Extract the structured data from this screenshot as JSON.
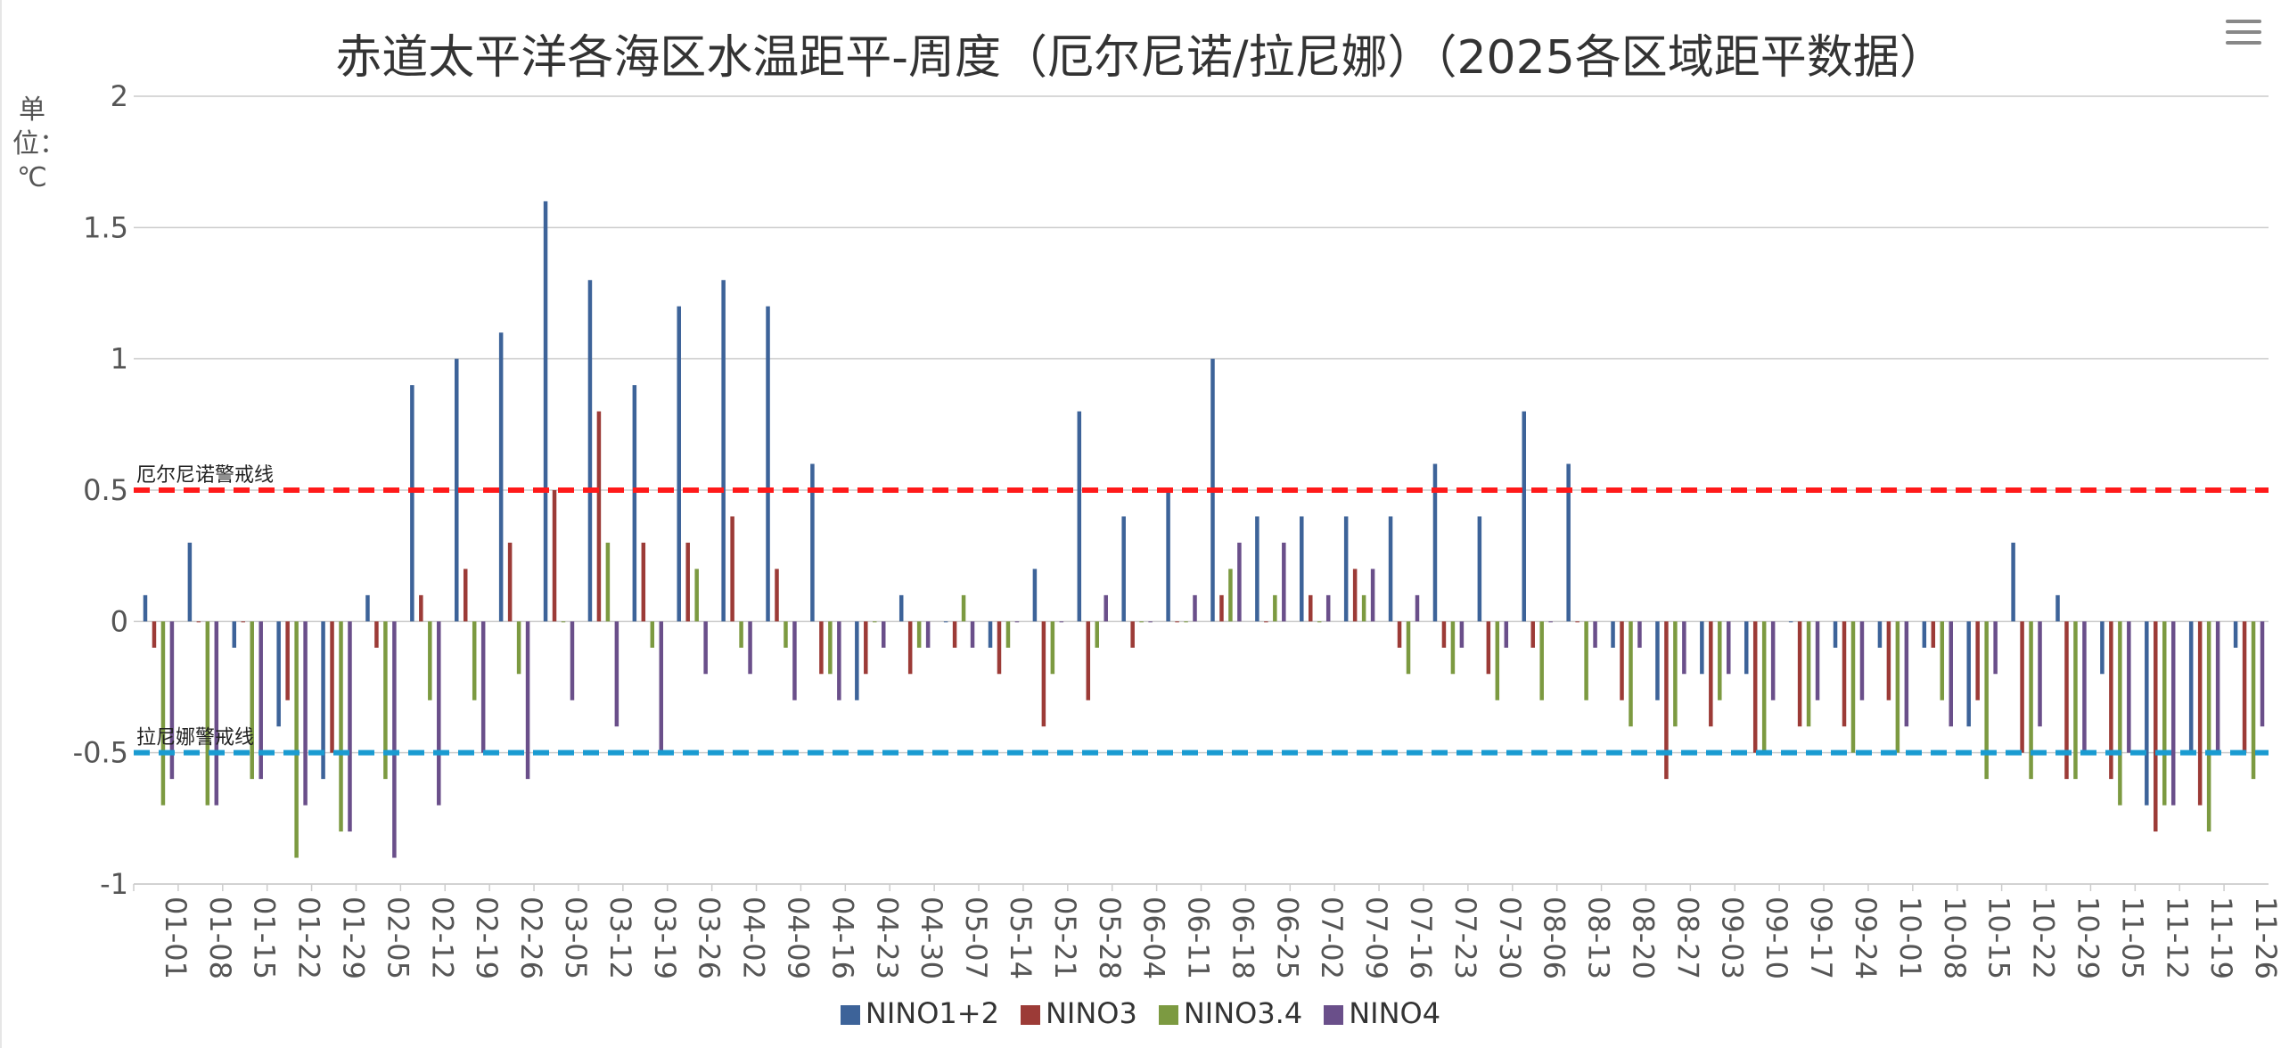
{
  "title": "赤道太平洋各海区水温距平-周度（厄尔尼诺/拉尼娜）（2025各区域距平数据）",
  "unit_label": "单位：℃",
  "colors": {
    "nino12": "#3d6399",
    "nino3": "#9c3b37",
    "nino34": "#7c9a41",
    "nino4": "#6a4f8a",
    "el_nino_line": "#ff1a1a",
    "la_nina_line": "#1a9bd1",
    "grid": "#cccccc",
    "axis_text": "#555555"
  },
  "chart_data": {
    "type": "bar",
    "title": "赤道太平洋各海区水温距平-周度（厄尔尼诺/拉尼娜）（2025各区域距平数据）",
    "xlabel": "",
    "ylabel": "单位：℃",
    "ylim": [
      -1,
      2
    ],
    "yticks": [
      2,
      1.5,
      1,
      0.5,
      0,
      -0.5,
      -1
    ],
    "ytick_labels": [
      "2",
      "1.5",
      "1",
      "0.5",
      "0",
      "-0.5",
      "-1"
    ],
    "grid": true,
    "legend_position": "bottom",
    "categories": [
      "01-01",
      "01-08",
      "01-15",
      "01-22",
      "01-29",
      "02-05",
      "02-12",
      "02-19",
      "02-26",
      "03-05",
      "03-12",
      "03-19",
      "03-26",
      "04-02",
      "04-09",
      "04-16",
      "04-23",
      "04-30",
      "05-07",
      "05-14",
      "05-21",
      "05-28",
      "06-04",
      "06-11",
      "06-18",
      "06-25",
      "07-02",
      "07-09",
      "07-16",
      "07-23",
      "07-30",
      "08-06",
      "08-13",
      "08-20",
      "08-27",
      "09-03",
      "09-10",
      "09-17",
      "09-24",
      "10-01",
      "10-08",
      "10-15",
      "10-22",
      "10-29",
      "11-05",
      "11-12",
      "11-19",
      "11-26"
    ],
    "series": [
      {
        "name": "NINO1+2",
        "color_key": "nino12",
        "values": [
          0.1,
          0.3,
          -0.1,
          -0.4,
          -0.6,
          0.1,
          0.9,
          1.0,
          1.1,
          1.6,
          1.3,
          0.9,
          1.2,
          1.3,
          1.2,
          0.6,
          -0.3,
          0.1,
          0,
          -0.1,
          0.2,
          0.8,
          0.4,
          0.5,
          1.0,
          0.4,
          0.4,
          0.4,
          0.4,
          0.6,
          0.4,
          0.8,
          0.6,
          -0.1,
          -0.3,
          -0.2,
          -0.2,
          0,
          -0.1,
          -0.1,
          -0.1,
          -0.4,
          0.3,
          0.1,
          -0.2,
          -0.7,
          -0.5,
          -0.1
        ]
      },
      {
        "name": "NINO3",
        "color_key": "nino3",
        "values": [
          -0.1,
          0,
          0,
          -0.3,
          -0.5,
          -0.1,
          0.1,
          0.2,
          0.3,
          0.5,
          0.8,
          0.3,
          0.3,
          0.4,
          0.2,
          -0.2,
          -0.2,
          -0.2,
          -0.1,
          -0.2,
          -0.4,
          -0.3,
          -0.1,
          0,
          0.1,
          0,
          0.1,
          0.2,
          -0.1,
          -0.1,
          -0.2,
          -0.1,
          0,
          -0.3,
          -0.6,
          -0.4,
          -0.5,
          -0.4,
          -0.4,
          -0.3,
          -0.1,
          -0.3,
          -0.5,
          -0.6,
          -0.6,
          -0.8,
          -0.7,
          -0.5
        ]
      },
      {
        "name": "NINO3.4",
        "color_key": "nino34",
        "values": [
          -0.7,
          -0.7,
          -0.6,
          -0.9,
          -0.8,
          -0.6,
          -0.3,
          -0.3,
          -0.2,
          0,
          0.3,
          -0.1,
          0.2,
          -0.1,
          -0.1,
          -0.2,
          0,
          -0.1,
          0.1,
          -0.1,
          -0.2,
          -0.1,
          0,
          0,
          0.2,
          0.1,
          0,
          0.1,
          -0.2,
          -0.2,
          -0.3,
          -0.3,
          -0.3,
          -0.4,
          -0.4,
          -0.3,
          -0.5,
          -0.4,
          -0.5,
          -0.5,
          -0.3,
          -0.6,
          -0.6,
          -0.6,
          -0.7,
          -0.7,
          -0.8,
          -0.6
        ]
      },
      {
        "name": "NINO4",
        "color_key": "nino4",
        "values": [
          -0.6,
          -0.7,
          -0.6,
          -0.7,
          -0.8,
          -0.9,
          -0.7,
          -0.5,
          -0.6,
          -0.3,
          -0.4,
          -0.5,
          -0.2,
          -0.2,
          -0.3,
          -0.3,
          -0.1,
          -0.1,
          -0.1,
          0,
          0,
          0.1,
          0,
          0.1,
          0.3,
          0.3,
          0.1,
          0.2,
          0.1,
          -0.1,
          -0.1,
          0,
          -0.1,
          -0.1,
          -0.2,
          -0.2,
          -0.3,
          -0.3,
          -0.3,
          -0.4,
          -0.4,
          -0.2,
          -0.4,
          -0.5,
          -0.5,
          -0.7,
          -0.5,
          -0.4
        ]
      }
    ],
    "reference_lines": [
      {
        "label": "厄尔尼诺警戒线",
        "value": 0.5,
        "color_key": "el_nino_line"
      },
      {
        "label": "拉尼娜警戒线",
        "value": -0.5,
        "color_key": "la_nina_line"
      }
    ]
  }
}
